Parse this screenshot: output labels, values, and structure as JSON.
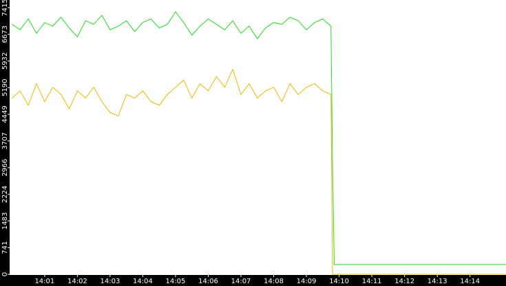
{
  "chart_data": {
    "type": "line",
    "x": [
      840,
      840.25,
      840.5,
      840.75,
      841,
      841.25,
      841.5,
      841.75,
      842,
      842.25,
      842.5,
      842.75,
      843,
      843.25,
      843.5,
      843.75,
      844,
      844.25,
      844.5,
      844.75,
      845,
      845.25,
      845.5,
      845.75,
      846,
      846.25,
      846.5,
      846.75,
      847,
      847.25,
      847.5,
      847.75,
      848,
      848.25,
      848.5,
      848.75,
      849,
      849.25,
      849.5,
      849.75,
      849.8,
      849.85,
      855.1
    ],
    "series": [
      {
        "color": "#22dd22",
        "values": [
          6950,
          6800,
          7100,
          6700,
          7000,
          6900,
          7150,
          6850,
          6600,
          7050,
          6950,
          7200,
          6800,
          6900,
          7050,
          6750,
          7000,
          7100,
          6850,
          6950,
          7300,
          7000,
          6650,
          6900,
          7100,
          6950,
          6800,
          7050,
          6700,
          6900,
          6550,
          6850,
          7000,
          6950,
          7150,
          7050,
          6800,
          7000,
          7100,
          6900,
          3000,
          270,
          270
        ]
      },
      {
        "color": "#f0b800",
        "values": [
          4900,
          5100,
          4700,
          5300,
          4800,
          5200,
          5000,
          4600,
          5100,
          4900,
          5200,
          4800,
          4500,
          4400,
          5000,
          4900,
          5100,
          4800,
          4700,
          5000,
          5200,
          5400,
          4900,
          5300,
          5100,
          5500,
          5200,
          5700,
          5000,
          5300,
          4900,
          5100,
          5200,
          4800,
          5300,
          5000,
          5200,
          5300,
          5100,
          5000,
          0,
          0,
          0
        ]
      }
    ],
    "xlim": [
      839.93,
      855.1
    ],
    "xticks": [
      {
        "value": 841,
        "label": "14:01"
      },
      {
        "value": 842,
        "label": "14:02"
      },
      {
        "value": 843,
        "label": "14:03"
      },
      {
        "value": 844,
        "label": "14:04"
      },
      {
        "value": 845,
        "label": "14:05"
      },
      {
        "value": 846,
        "label": "14:06"
      },
      {
        "value": 847,
        "label": "14:07"
      },
      {
        "value": 848,
        "label": "14:08"
      },
      {
        "value": 849,
        "label": "14:09"
      },
      {
        "value": 850,
        "label": "14:10"
      },
      {
        "value": 851,
        "label": "14:11"
      },
      {
        "value": 852,
        "label": "14:12"
      },
      {
        "value": 853,
        "label": "14:13"
      },
      {
        "value": 854,
        "label": "14:14"
      }
    ],
    "ylim": [
      0,
      7627
    ],
    "yticks": [
      0,
      741,
      1483,
      2224,
      2966,
      3707,
      4449,
      5190,
      5932,
      6673,
      7415
    ]
  }
}
